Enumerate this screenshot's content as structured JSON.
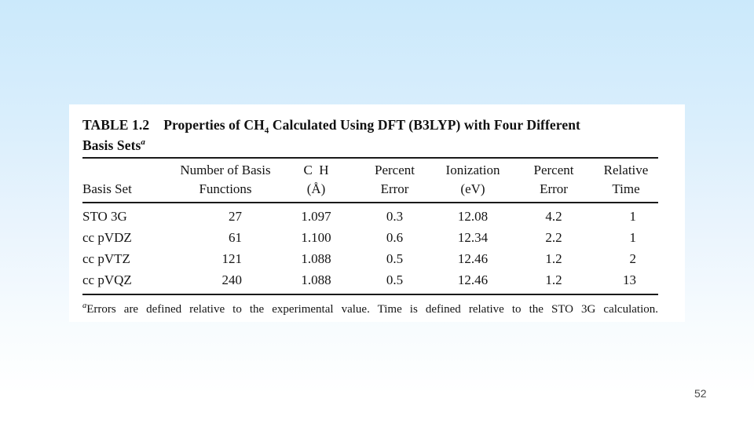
{
  "colors": {
    "background_top": "#cbe9fb",
    "background_bottom": "#ffffff",
    "panel": "#ffffff",
    "text": "#141414",
    "rule": "#1a1a1a",
    "page_number": "#4a4a4a"
  },
  "page_number": "52",
  "table": {
    "title": {
      "label": "TABLE 1.2",
      "pre": "Properties of CH",
      "subscript": "4",
      "post": "Calculated Using DFT (B3LYP) with Four Different",
      "line2": "Basis Sets",
      "superscript": "a"
    },
    "headers": [
      {
        "line1": "",
        "line2": "Basis Set"
      },
      {
        "line1": "Number of Basis",
        "line2": "Functions"
      },
      {
        "line1": "C  H",
        "line2": "(Å)"
      },
      {
        "line1": "Percent",
        "line2": "Error"
      },
      {
        "line1": "Ionization",
        "line2": "(eV)"
      },
      {
        "line1": "Percent",
        "line2": "Error"
      },
      {
        "line1": "Relative",
        "line2": "Time"
      }
    ],
    "rows": [
      [
        "STO 3G",
        "27",
        "1.097",
        "0.3",
        "12.08",
        "4.2",
        "1"
      ],
      [
        "cc pVDZ",
        "61",
        "1.100",
        "0.6",
        "12.34",
        "2.2",
        "1"
      ],
      [
        "cc pVTZ",
        "121",
        "1.088",
        "0.5",
        "12.46",
        "1.2",
        "2"
      ],
      [
        "cc pVQZ",
        "240",
        "1.088",
        "0.5",
        "12.46",
        "1.2",
        "13"
      ]
    ],
    "footnote": {
      "marker": "a",
      "text": "Errors are defined relative to the experimental value. Time is defined relative to the STO 3G calculation."
    }
  }
}
